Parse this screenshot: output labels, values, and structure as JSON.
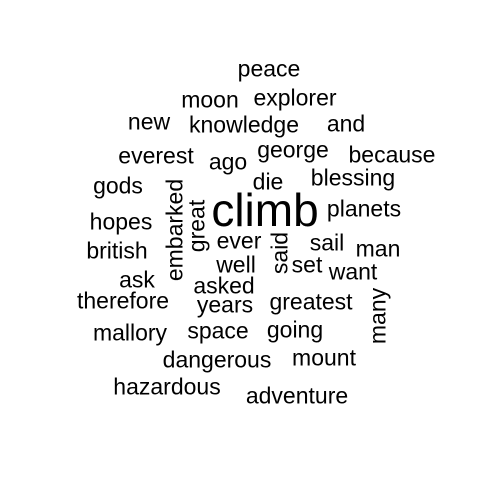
{
  "colors": {
    "background": "#ffffff",
    "text": "#000000"
  },
  "words": [
    {
      "id": "peace",
      "text": "peace"
    },
    {
      "id": "moon",
      "text": "moon"
    },
    {
      "id": "explorer",
      "text": "explorer"
    },
    {
      "id": "new",
      "text": "new"
    },
    {
      "id": "knowledge",
      "text": "knowledge"
    },
    {
      "id": "and",
      "text": "and"
    },
    {
      "id": "everest",
      "text": "everest"
    },
    {
      "id": "ago",
      "text": "ago"
    },
    {
      "id": "george",
      "text": "george"
    },
    {
      "id": "because",
      "text": "because"
    },
    {
      "id": "gods",
      "text": "gods"
    },
    {
      "id": "die",
      "text": "die"
    },
    {
      "id": "blessing",
      "text": "blessing"
    },
    {
      "id": "embarked",
      "text": "embarked",
      "vertical": true
    },
    {
      "id": "climb",
      "text": "climb"
    },
    {
      "id": "planets",
      "text": "planets"
    },
    {
      "id": "hopes",
      "text": "hopes"
    },
    {
      "id": "great",
      "text": "great",
      "vertical": true
    },
    {
      "id": "ever",
      "text": "ever"
    },
    {
      "id": "said",
      "text": "said",
      "vertical": true
    },
    {
      "id": "sail",
      "text": "sail"
    },
    {
      "id": "man",
      "text": "man"
    },
    {
      "id": "british",
      "text": "british"
    },
    {
      "id": "well",
      "text": "well"
    },
    {
      "id": "set",
      "text": "set"
    },
    {
      "id": "want",
      "text": "want"
    },
    {
      "id": "ask",
      "text": "ask"
    },
    {
      "id": "asked",
      "text": "asked"
    },
    {
      "id": "therefore",
      "text": "therefore"
    },
    {
      "id": "years",
      "text": "years"
    },
    {
      "id": "greatest",
      "text": "greatest"
    },
    {
      "id": "many",
      "text": "many",
      "vertical": true
    },
    {
      "id": "mallory",
      "text": "mallory"
    },
    {
      "id": "space",
      "text": "space"
    },
    {
      "id": "going",
      "text": "going"
    },
    {
      "id": "dangerous",
      "text": "dangerous"
    },
    {
      "id": "mount",
      "text": "mount"
    },
    {
      "id": "hazardous",
      "text": "hazardous"
    },
    {
      "id": "adventure",
      "text": "adventure"
    }
  ]
}
